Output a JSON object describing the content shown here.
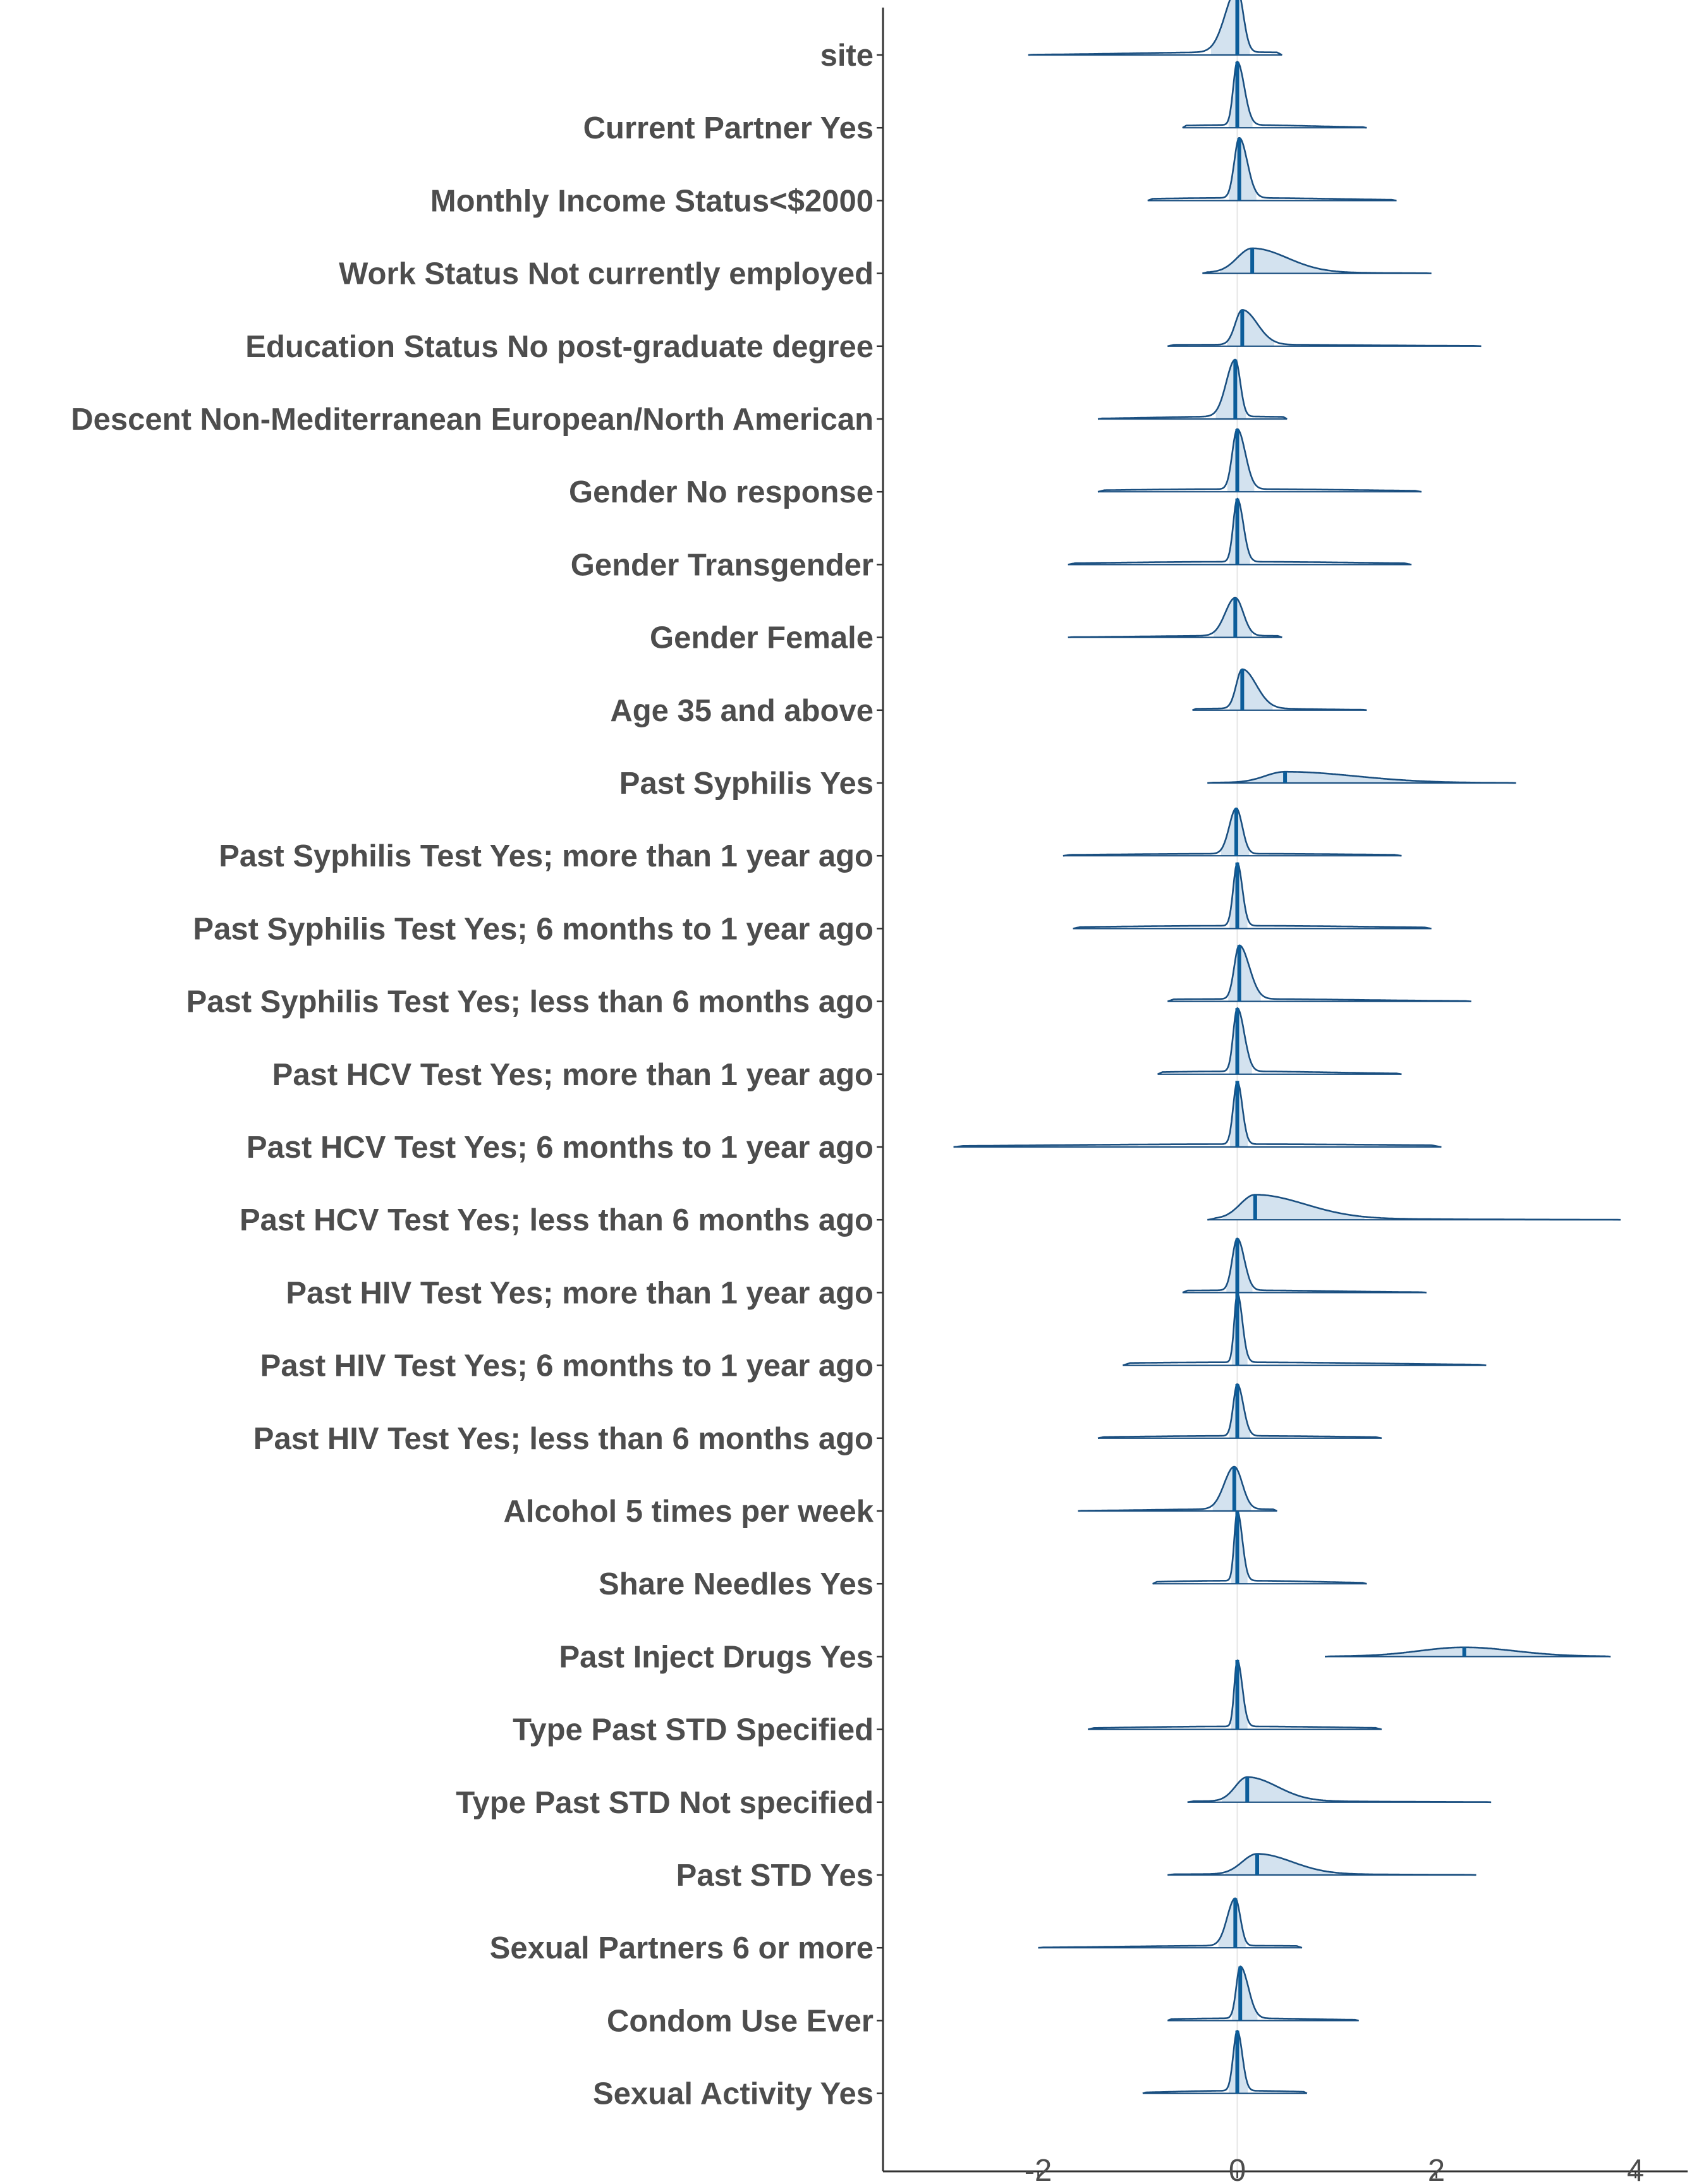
{
  "chart_data": {
    "type": "ridgeline",
    "title": "",
    "xlabel": "",
    "ylabel": "",
    "xlim": [
      -3.55,
      4.55
    ],
    "x_ticks": [
      -2,
      0,
      2,
      4
    ],
    "x_tick_labels": [
      "-2",
      "0",
      "2",
      "4"
    ],
    "reference_line_x": 0,
    "grid": false,
    "legend": "none",
    "colors": {
      "line": "#1a4f80",
      "fill": "#d3e2ef",
      "median": "#0c5d9a",
      "axis": "#333333",
      "refline": "#e6e6e6"
    },
    "series": [
      {
        "name": "site",
        "min": -2.1,
        "max": 0.45,
        "median": 0.0,
        "sd_left": 0.12,
        "sd_right": 0.06,
        "peak": 1.0
      },
      {
        "name": "Current Partner Yes",
        "min": -0.55,
        "max": 1.3,
        "median": 0.0,
        "sd_left": 0.04,
        "sd_right": 0.07,
        "peak": 1.0
      },
      {
        "name": "Monthly Income Status<$2000",
        "min": -0.9,
        "max": 1.6,
        "median": 0.02,
        "sd_left": 0.05,
        "sd_right": 0.08,
        "peak": 0.95
      },
      {
        "name": "Work Status Not currently employed",
        "min": -0.35,
        "max": 1.95,
        "median": 0.15,
        "sd_left": 0.15,
        "sd_right": 0.35,
        "peak": 0.38
      },
      {
        "name": "Education Status No post-graduate degree",
        "min": -0.7,
        "max": 2.45,
        "median": 0.05,
        "sd_left": 0.07,
        "sd_right": 0.15,
        "peak": 0.55
      },
      {
        "name": "Descent Non-Mediterranean European/North American",
        "min": -1.4,
        "max": 0.5,
        "median": -0.02,
        "sd_left": 0.09,
        "sd_right": 0.05,
        "peak": 0.9
      },
      {
        "name": "Gender No response",
        "min": -1.4,
        "max": 1.85,
        "median": 0.0,
        "sd_left": 0.05,
        "sd_right": 0.08,
        "peak": 0.95
      },
      {
        "name": "Gender Transgender",
        "min": -1.7,
        "max": 1.75,
        "median": 0.0,
        "sd_left": 0.04,
        "sd_right": 0.06,
        "peak": 1.0
      },
      {
        "name": "Gender Female",
        "min": -1.7,
        "max": 0.45,
        "median": -0.02,
        "sd_left": 0.1,
        "sd_right": 0.08,
        "peak": 0.6
      },
      {
        "name": "Age 35 and above",
        "min": -0.45,
        "max": 1.3,
        "median": 0.05,
        "sd_left": 0.06,
        "sd_right": 0.14,
        "peak": 0.62
      },
      {
        "name": "Past Syphilis Yes",
        "min": -0.3,
        "max": 2.8,
        "median": 0.48,
        "sd_left": 0.2,
        "sd_right": 0.7,
        "peak": 0.17
      },
      {
        "name": "Past Syphilis Test Yes; more than  1 year ago",
        "min": -1.75,
        "max": 1.65,
        "median": -0.01,
        "sd_left": 0.07,
        "sd_right": 0.06,
        "peak": 0.72
      },
      {
        "name": "Past Syphilis Test Yes;  6 months to  1 year ago",
        "min": -1.65,
        "max": 1.95,
        "median": 0.0,
        "sd_left": 0.04,
        "sd_right": 0.05,
        "peak": 1.0
      },
      {
        "name": "Past Syphilis Test Yes; less than  6 months ago",
        "min": -0.7,
        "max": 2.35,
        "median": 0.02,
        "sd_left": 0.05,
        "sd_right": 0.1,
        "peak": 0.85
      },
      {
        "name": "Past HCV Test Yes; more than  1 year ago",
        "min": -0.8,
        "max": 1.65,
        "median": 0.0,
        "sd_left": 0.04,
        "sd_right": 0.07,
        "peak": 1.0
      },
      {
        "name": "Past HCV Test Yes;  6 months to  1 year ago",
        "min": -2.85,
        "max": 2.05,
        "median": 0.0,
        "sd_left": 0.04,
        "sd_right": 0.05,
        "peak": 1.0
      },
      {
        "name": "Past HCV Test Yes; less than  6 months ago",
        "min": -0.3,
        "max": 3.85,
        "median": 0.18,
        "sd_left": 0.15,
        "sd_right": 0.5,
        "peak": 0.38
      },
      {
        "name": "Past HIV Test Yes; more than  1 year ago",
        "min": -0.55,
        "max": 1.9,
        "median": 0.0,
        "sd_left": 0.05,
        "sd_right": 0.07,
        "peak": 0.82
      },
      {
        "name": "Past HIV Test Yes;  6 months to  1 year ago",
        "min": -1.15,
        "max": 2.5,
        "median": 0.0,
        "sd_left": 0.03,
        "sd_right": 0.05,
        "peak": 1.1
      },
      {
        "name": "Past HIV Test Yes; less than  6 months ago",
        "min": -1.4,
        "max": 1.45,
        "median": 0.0,
        "sd_left": 0.04,
        "sd_right": 0.06,
        "peak": 0.82
      },
      {
        "name": "Alcohol 5 times per week",
        "min": -1.6,
        "max": 0.4,
        "median": -0.03,
        "sd_left": 0.1,
        "sd_right": 0.08,
        "peak": 0.67
      },
      {
        "name": "Share Needles Yes",
        "min": -0.85,
        "max": 1.3,
        "median": 0.0,
        "sd_left": 0.03,
        "sd_right": 0.05,
        "peak": 1.1
      },
      {
        "name": "Past Inject Drugs Yes",
        "min": 0.88,
        "max": 3.75,
        "median": 2.28,
        "sd_left": 0.45,
        "sd_right": 0.5,
        "peak": 0.14
      },
      {
        "name": "Type Past STD Specified",
        "min": -1.5,
        "max": 1.45,
        "median": 0.0,
        "sd_left": 0.03,
        "sd_right": 0.05,
        "peak": 1.05
      },
      {
        "name": "Type Past STD Not specified",
        "min": -0.5,
        "max": 2.55,
        "median": 0.1,
        "sd_left": 0.12,
        "sd_right": 0.3,
        "peak": 0.38
      },
      {
        "name": "Past STD Yes",
        "min": -0.7,
        "max": 2.4,
        "median": 0.2,
        "sd_left": 0.15,
        "sd_right": 0.35,
        "peak": 0.32
      },
      {
        "name": "Sexual Partners 6 or more",
        "min": -2.0,
        "max": 0.65,
        "median": -0.02,
        "sd_left": 0.08,
        "sd_right": 0.05,
        "peak": 0.75
      },
      {
        "name": "Condom Use Ever",
        "min": -0.7,
        "max": 1.22,
        "median": 0.03,
        "sd_left": 0.04,
        "sd_right": 0.08,
        "peak": 0.82
      },
      {
        "name": "Sexual Activity Yes",
        "min": -0.95,
        "max": 0.7,
        "median": 0.0,
        "sd_left": 0.04,
        "sd_right": 0.05,
        "peak": 0.95
      }
    ]
  }
}
